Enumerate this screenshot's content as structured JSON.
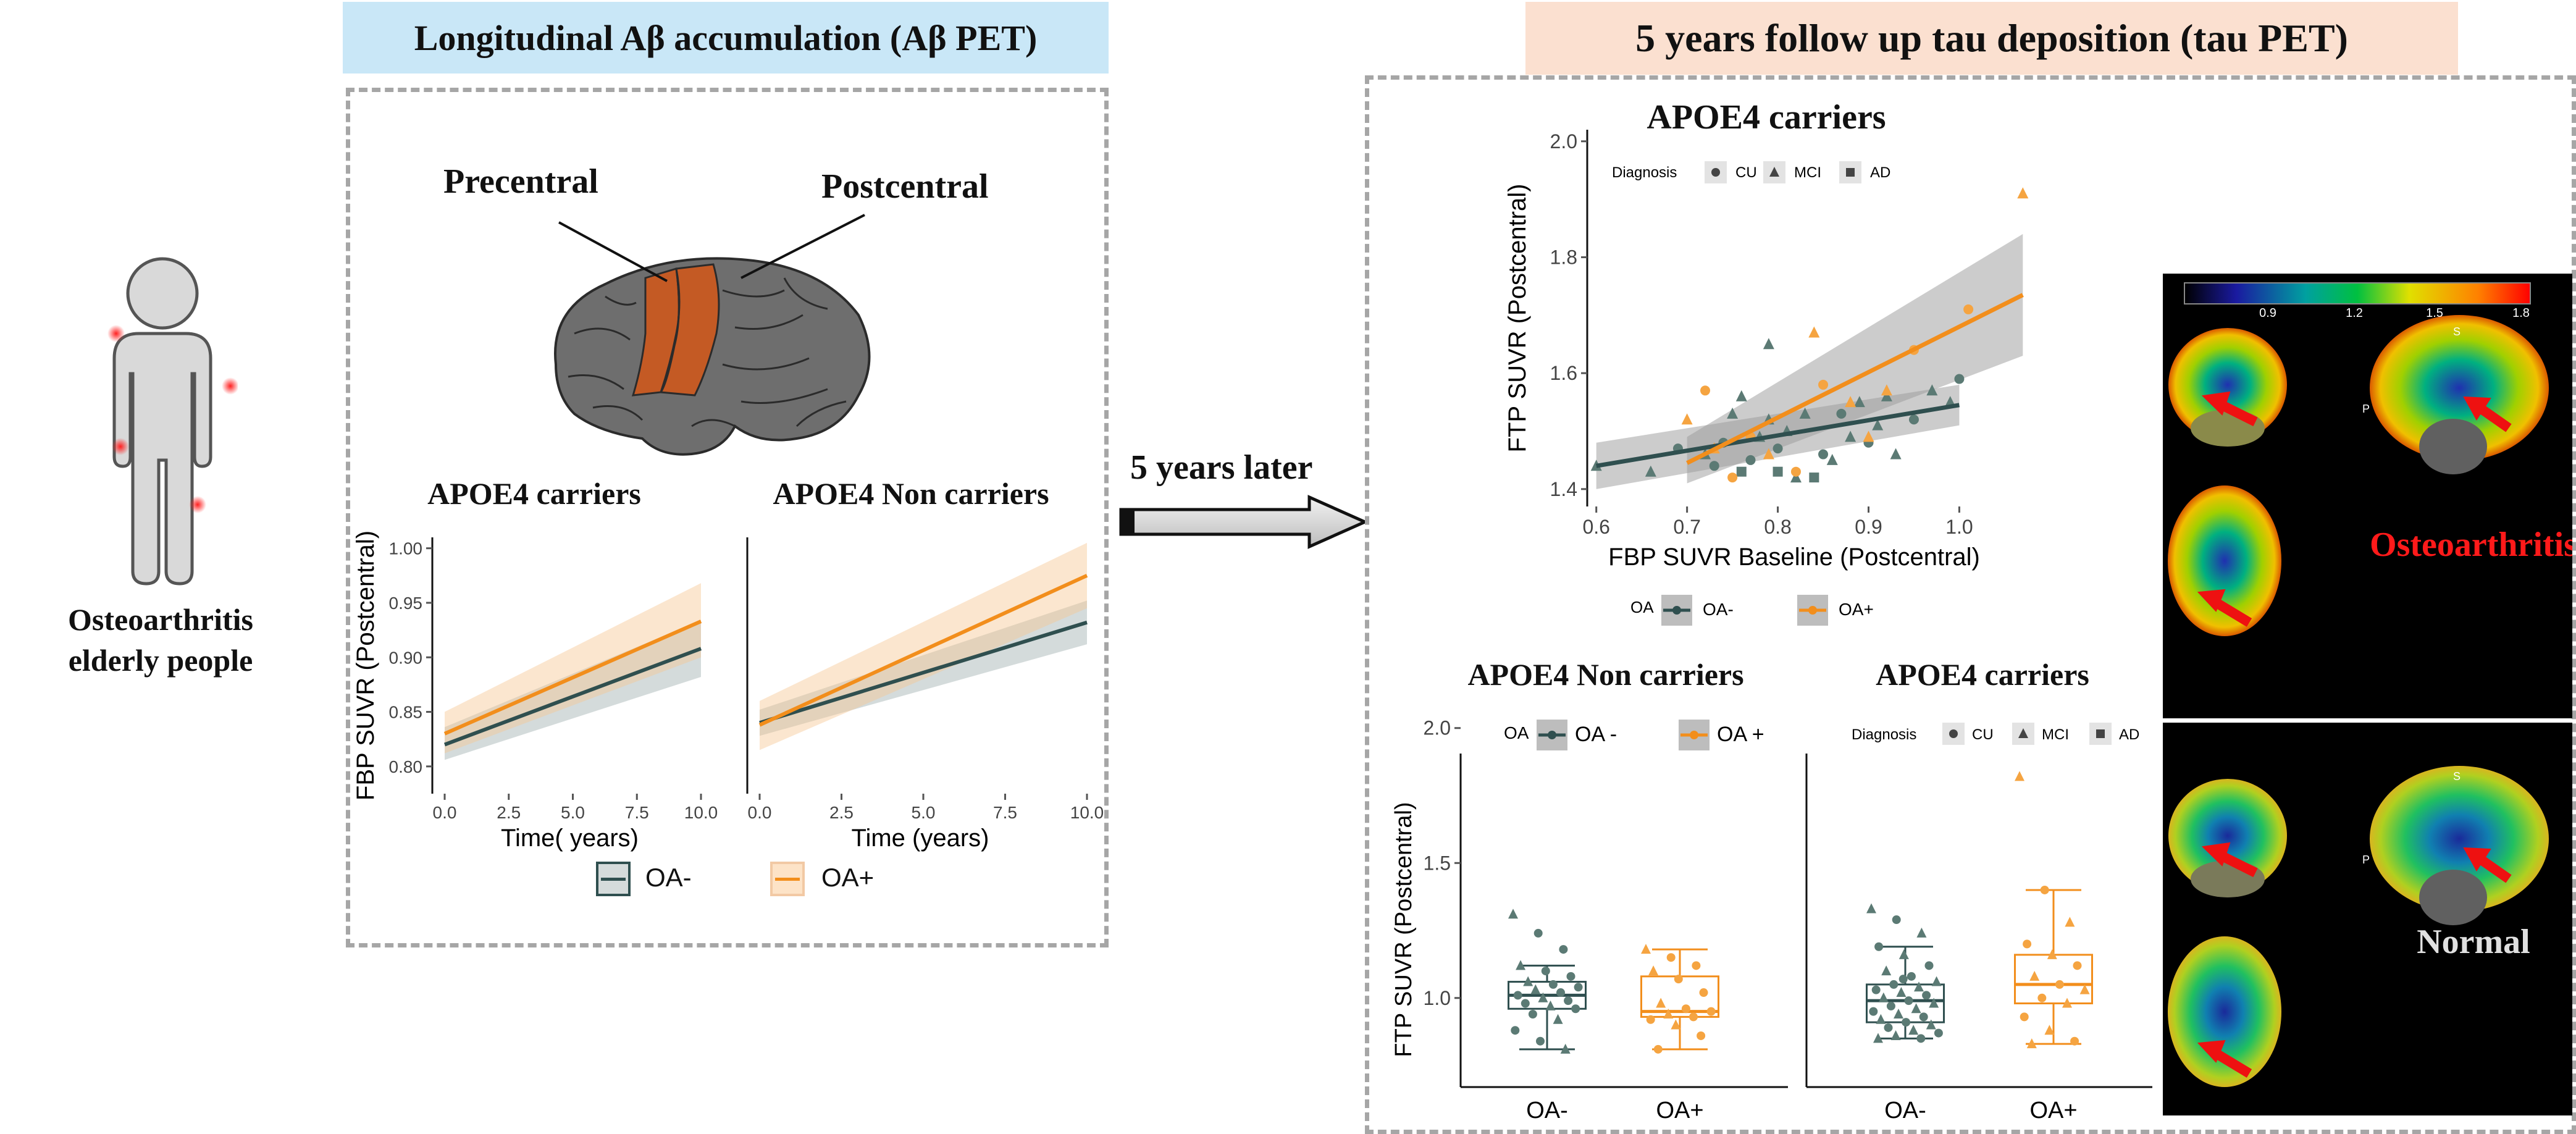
{
  "left_person": {
    "caption": "Osteoarthritis\nelderly people"
  },
  "amyloid_panel": {
    "header": "Longitudinal Aβ accumulation (Aβ PET)",
    "header_color": "#c9e7f7",
    "brain_labels": [
      "Precentral",
      "Postcentral"
    ],
    "region_color": "#c45a24"
  },
  "arrow": {
    "label": "5 years later"
  },
  "tau_panel": {
    "header": "5 years follow up tau deposition (tau PET)",
    "header_color": "#fbe0d0"
  },
  "colors": {
    "oa_neg": "#2f4f4f",
    "oa_pos": "#f28e1c"
  },
  "chart_data": [
    {
      "id": "abeta_carriers",
      "type": "line",
      "title": "APOE4 carriers",
      "xlabel": "Time( years)",
      "ylabel": "FBP SUVR (Postcentral)",
      "xlim": [
        0,
        10
      ],
      "ylim": [
        0.775,
        1.01
      ],
      "xticks": [
        "0.0",
        "2.5",
        "5.0",
        "7.5",
        "10.0"
      ],
      "yticks": [
        "0.80",
        "0.85",
        "0.90",
        "0.95",
        "1.00"
      ],
      "series": [
        {
          "name": "OA-",
          "x": [
            0,
            10
          ],
          "y": [
            0.82,
            0.908
          ],
          "ci_low": [
            0.806,
            0.882
          ],
          "ci_high": [
            0.836,
            0.934
          ]
        },
        {
          "name": "OA+",
          "x": [
            0,
            10
          ],
          "y": [
            0.83,
            0.933
          ],
          "ci_low": [
            0.812,
            0.9
          ],
          "ci_high": [
            0.85,
            0.968
          ]
        }
      ]
    },
    {
      "id": "abeta_noncarriers",
      "type": "line",
      "title": "APOE4 Non carriers",
      "xlabel": "Time (years)",
      "ylabel": "",
      "xlim": [
        0,
        10
      ],
      "ylim": [
        0.775,
        1.01
      ],
      "xticks": [
        "0.0",
        "2.5",
        "5.0",
        "7.5",
        "10.0"
      ],
      "series": [
        {
          "name": "OA-",
          "x": [
            0,
            10
          ],
          "y": [
            0.84,
            0.932
          ],
          "ci_low": [
            0.828,
            0.912
          ],
          "ci_high": [
            0.852,
            0.952
          ]
        },
        {
          "name": "OA+",
          "x": [
            0,
            10
          ],
          "y": [
            0.838,
            0.975
          ],
          "ci_low": [
            0.815,
            0.945
          ],
          "ci_high": [
            0.86,
            1.005
          ]
        }
      ],
      "legend": {
        "items": [
          "OA-",
          "OA+"
        ]
      }
    },
    {
      "id": "tau_scatter",
      "type": "scatter",
      "title": "APOE4 carriers",
      "xlabel": "FBP SUVR Baseline (Postcentral)",
      "ylabel": "FTP SUVR (Postcentral)",
      "xlim": [
        0.59,
        1.08
      ],
      "ylim": [
        1.37,
        2.02
      ],
      "xticks": [
        "0.6",
        "0.7",
        "0.8",
        "0.9",
        "1.0"
      ],
      "yticks": [
        "1.4",
        "1.6",
        "1.8",
        "2.0"
      ],
      "diagnosis_legend": {
        "title": "Diagnosis",
        "items": [
          "CU",
          "MCI",
          "AD"
        ]
      },
      "oa_legend": {
        "title": "OA",
        "items": [
          "OA-",
          "OA+"
        ]
      },
      "fits": [
        {
          "name": "OA-",
          "x": [
            0.6,
            1.0
          ],
          "y": [
            1.44,
            1.545
          ],
          "ci_low": [
            1.4,
            1.51
          ],
          "ci_high": [
            1.48,
            1.58
          ],
          "fit_x": [
            0.6,
            1.0
          ]
        },
        {
          "name": "OA+",
          "x": [
            0.7,
            1.07
          ],
          "y": [
            1.445,
            1.735
          ],
          "ci_low": [
            1.41,
            1.63
          ],
          "ci_high": [
            1.49,
            1.84
          ]
        }
      ],
      "points_oa_neg": [
        [
          0.6,
          1.44,
          "MCI"
        ],
        [
          0.66,
          1.43,
          "MCI"
        ],
        [
          0.69,
          1.47,
          "CU"
        ],
        [
          0.72,
          1.46,
          "MCI"
        ],
        [
          0.74,
          1.48,
          "CU"
        ],
        [
          0.75,
          1.53,
          "MCI"
        ],
        [
          0.76,
          1.56,
          "MCI"
        ],
        [
          0.77,
          1.45,
          "CU"
        ],
        [
          0.78,
          1.49,
          "MCI"
        ],
        [
          0.79,
          1.52,
          "MCI"
        ],
        [
          0.79,
          1.65,
          "MCI"
        ],
        [
          0.8,
          1.47,
          "CU"
        ],
        [
          0.8,
          1.43,
          "AD"
        ],
        [
          0.81,
          1.5,
          "MCI"
        ],
        [
          0.82,
          1.42,
          "MCI"
        ],
        [
          0.83,
          1.53,
          "MCI"
        ],
        [
          0.84,
          1.42,
          "AD"
        ],
        [
          0.85,
          1.46,
          "CU"
        ],
        [
          0.86,
          1.45,
          "MCI"
        ],
        [
          0.87,
          1.53,
          "CU"
        ],
        [
          0.88,
          1.49,
          "MCI"
        ],
        [
          0.89,
          1.55,
          "MCI"
        ],
        [
          0.9,
          1.48,
          "CU"
        ],
        [
          0.91,
          1.51,
          "MCI"
        ],
        [
          0.92,
          1.56,
          "MCI"
        ],
        [
          0.93,
          1.46,
          "MCI"
        ],
        [
          0.95,
          1.52,
          "CU"
        ],
        [
          0.97,
          1.57,
          "MCI"
        ],
        [
          0.99,
          1.55,
          "MCI"
        ],
        [
          1.0,
          1.59,
          "CU"
        ],
        [
          0.76,
          1.43,
          "AD"
        ],
        [
          0.73,
          1.44,
          "CU"
        ]
      ],
      "points_oa_pos": [
        [
          0.7,
          1.52,
          "MCI"
        ],
        [
          0.72,
          1.57,
          "CU"
        ],
        [
          0.73,
          1.47,
          "MCI"
        ],
        [
          0.75,
          1.42,
          "CU"
        ],
        [
          0.77,
          1.49,
          "CU"
        ],
        [
          0.79,
          1.46,
          "MCI"
        ],
        [
          0.82,
          1.43,
          "CU"
        ],
        [
          0.84,
          1.67,
          "MCI"
        ],
        [
          0.85,
          1.58,
          "CU"
        ],
        [
          0.88,
          1.55,
          "MCI"
        ],
        [
          0.9,
          1.49,
          "MCI"
        ],
        [
          0.92,
          1.57,
          "MCI"
        ],
        [
          0.95,
          1.64,
          "CU"
        ],
        [
          1.01,
          1.71,
          "CU"
        ],
        [
          1.07,
          1.91,
          "MCI"
        ]
      ]
    },
    {
      "id": "tau_box_noncarriers",
      "type": "box",
      "title": "APOE4 Non carriers",
      "ylabel": "FTP SUVR (Postcentral)",
      "ylim": [
        0.67,
        2.02
      ],
      "yticks": [
        "1.0",
        "1.5",
        "2.0"
      ],
      "categories": [
        "OA-",
        "OA+"
      ],
      "legend": {
        "title": "OA",
        "items": [
          "OA -",
          "OA +"
        ]
      },
      "boxes": [
        {
          "name": "OA-",
          "min": 0.81,
          "q1": 0.96,
          "median": 1.01,
          "q3": 1.06,
          "max": 1.12,
          "points": [
            1.31,
            1.24,
            1.18,
            1.12,
            1.1,
            1.08,
            1.06,
            1.05,
            1.04,
            1.03,
            1.02,
            1.01,
            1.0,
            0.99,
            0.98,
            0.97,
            0.96,
            0.94,
            0.92,
            0.88,
            0.84,
            0.81
          ]
        },
        {
          "name": "OA+",
          "min": 0.81,
          "q1": 0.93,
          "median": 0.95,
          "q3": 1.08,
          "max": 1.18,
          "points": [
            1.18,
            1.15,
            1.12,
            1.1,
            1.07,
            1.02,
            0.98,
            0.96,
            0.95,
            0.94,
            0.93,
            0.92,
            0.9,
            0.86,
            0.81
          ]
        }
      ]
    },
    {
      "id": "tau_box_carriers",
      "type": "box",
      "title": "APOE4 carriers",
      "ylabel": "",
      "ylim": [
        0.67,
        2.02
      ],
      "categories": [
        "OA-",
        "OA+"
      ],
      "legend": {
        "title": "Diagnosis",
        "items": [
          "CU",
          "MCI",
          "AD"
        ]
      },
      "boxes": [
        {
          "name": "OA-",
          "min": 0.85,
          "q1": 0.91,
          "median": 0.99,
          "q3": 1.05,
          "max": 1.19,
          "points": [
            1.33,
            1.29,
            1.24,
            1.19,
            1.16,
            1.12,
            1.1,
            1.08,
            1.06,
            1.05,
            1.04,
            1.03,
            1.02,
            1.01,
            1.0,
            0.99,
            0.98,
            0.97,
            0.96,
            0.95,
            0.94,
            0.93,
            0.92,
            0.91,
            0.9,
            0.89,
            0.88,
            0.87,
            0.86,
            0.85,
            0.85,
            1.07
          ]
        },
        {
          "name": "OA+",
          "min": 0.83,
          "q1": 0.98,
          "median": 1.05,
          "q3": 1.16,
          "max": 1.4,
          "points": [
            1.82,
            1.4,
            1.28,
            1.2,
            1.16,
            1.12,
            1.08,
            1.05,
            1.03,
            1.0,
            0.98,
            0.93,
            0.88,
            0.84,
            0.83
          ]
        }
      ]
    }
  ],
  "pet_images": {
    "scale_ticks": [
      "0.9",
      "1.2",
      "1.5",
      "1.8"
    ],
    "top_label": "Osteoarthritis",
    "bottom_label": "Normal",
    "orientation_labels": [
      "S",
      "P"
    ]
  }
}
